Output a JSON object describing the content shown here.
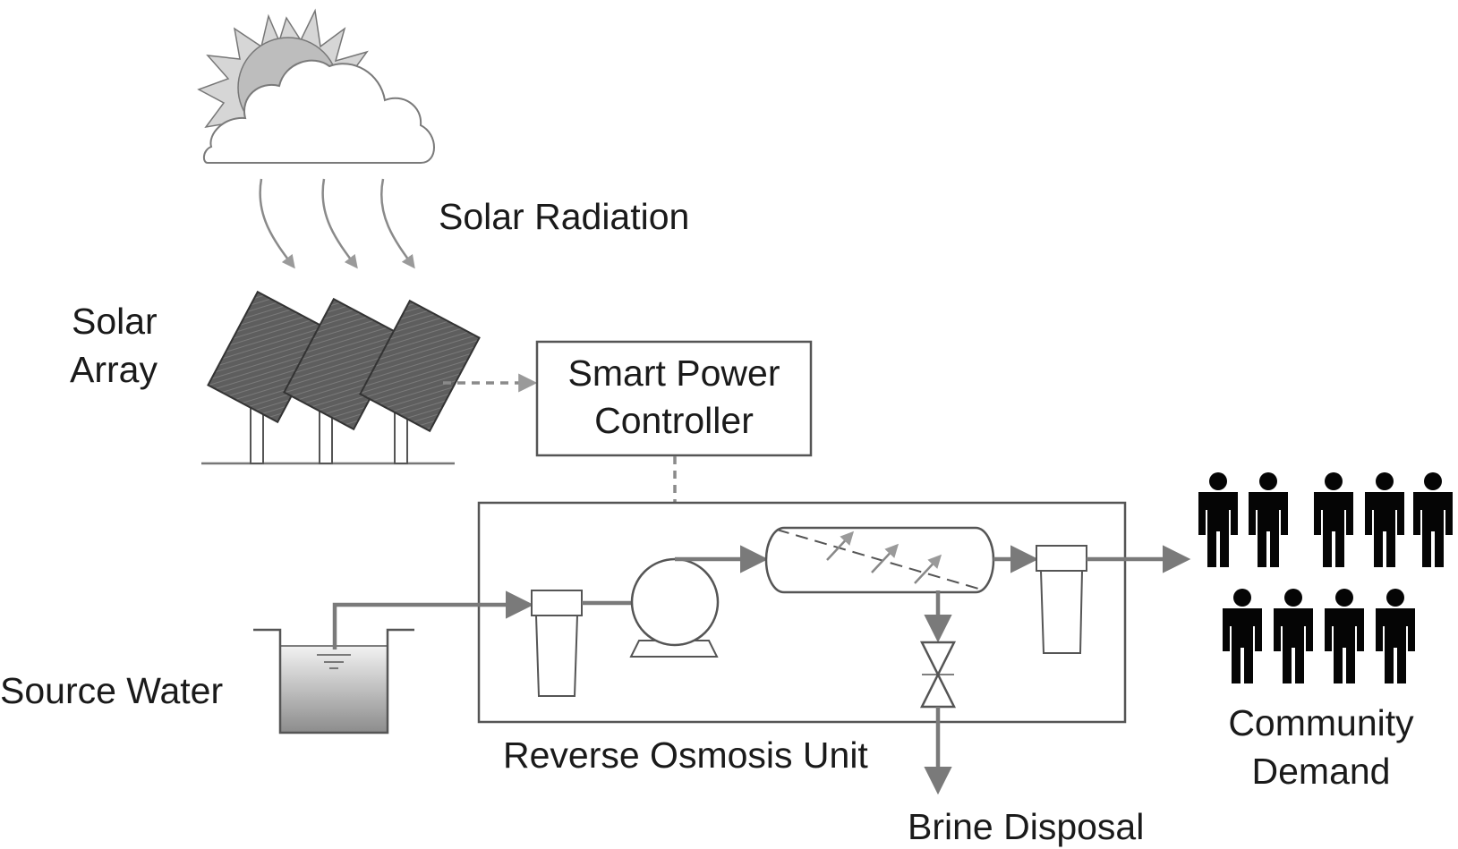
{
  "labels": {
    "solar_radiation": "Solar Radiation",
    "solar_array_line1": "Solar",
    "solar_array_line2": "Array",
    "controller_line1": "Smart Power",
    "controller_line2": "Controller",
    "source_water": "Source Water",
    "ro_unit": "Reverse Osmosis Unit",
    "brine_disposal": "Brine Disposal",
    "community_line1": "Community",
    "community_line2": "Demand"
  },
  "colors": {
    "line": "#7a7a7a",
    "box_stroke": "#555555",
    "panel_fill": "#5a5a5a",
    "sun_fill": "#bdbdbd",
    "person_fill": "#050505"
  },
  "icons": [
    "sun-icon",
    "cloud-icon",
    "solar-panel-icon",
    "tank-icon",
    "filter-icon",
    "pump-icon",
    "membrane-icon",
    "valve-icon",
    "person-icon"
  ]
}
